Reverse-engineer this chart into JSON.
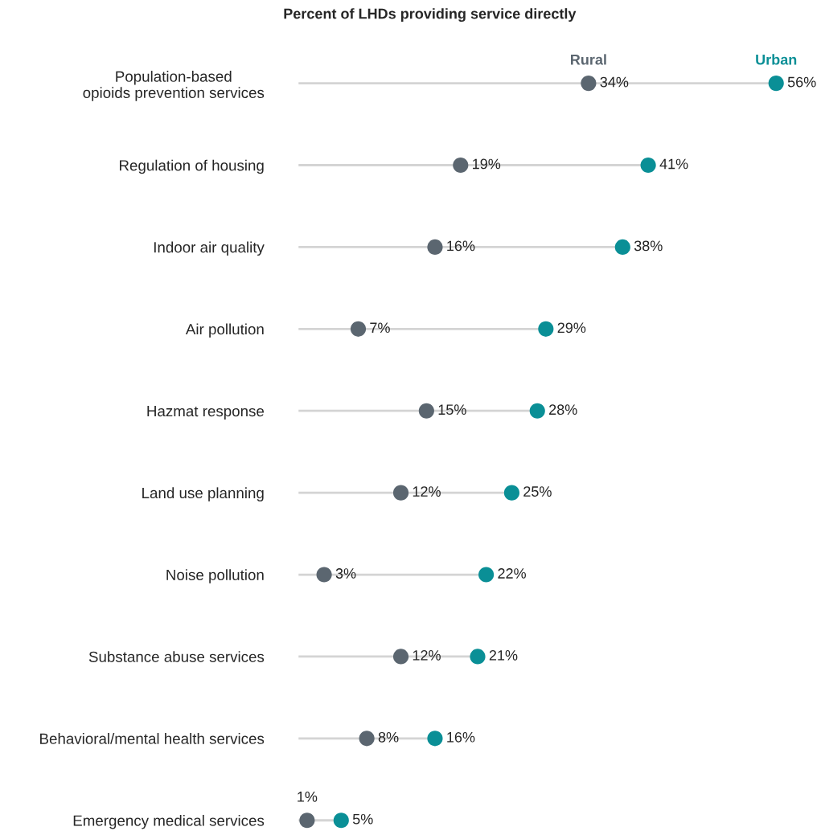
{
  "chart_data": {
    "type": "lollipop",
    "title": "Percent of LHDs providing service directly",
    "orientation": "horizontal",
    "categories": [
      "Population-based\nopioids prevention services",
      "Regulation of housing",
      "Indoor air quality",
      "Air pollution",
      "Hazmat response",
      "Land use planning",
      "Noise pollution",
      "Substance abuse services",
      "Behavioral/mental health services",
      "Emergency medical services"
    ],
    "series": [
      {
        "name": "Urban",
        "color": "#0a8f96",
        "values": [
          56,
          41,
          38,
          29,
          28,
          25,
          22,
          21,
          16,
          5
        ],
        "value_labels": [
          "56%",
          "41%",
          "38%",
          "29%",
          "28%",
          "25%",
          "22%",
          "21%",
          "16%",
          "5%"
        ]
      },
      {
        "name": "Rural",
        "type": "scatter",
        "color": "#5b6670",
        "values": [
          34,
          19,
          16,
          7,
          15,
          12,
          3,
          12,
          8,
          1
        ],
        "value_labels": [
          "34%",
          "19%",
          "16%",
          "7%",
          "15%",
          "12%",
          "3%",
          "12%",
          "8%",
          "1%"
        ]
      }
    ],
    "tick_labels": "y",
    "marker": "circle"
  }
}
